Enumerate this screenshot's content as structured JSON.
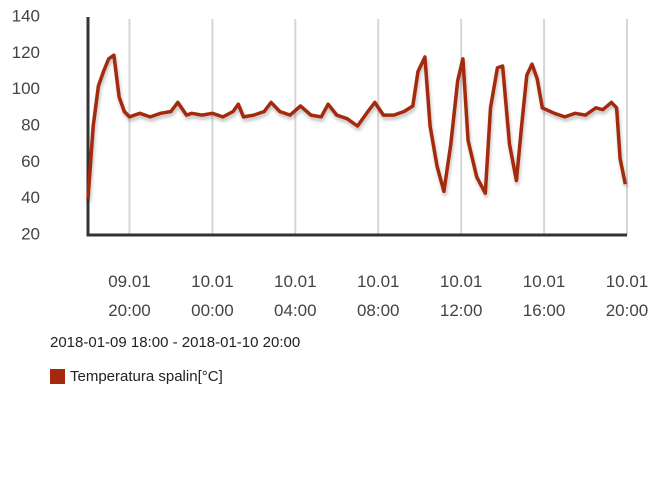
{
  "chart_data": {
    "type": "line",
    "subtitle": "2018-01-09 18:00 - 2018-01-10 20:00",
    "x": [
      "09.01 18:00",
      "09.01 18:15",
      "09.01 18:30",
      "09.01 18:45",
      "09.01 19:00",
      "09.01 19:15",
      "09.01 19:30",
      "09.01 19:45",
      "09.01 20:00",
      "09.01 20:30",
      "09.01 21:00",
      "09.01 21:30",
      "09.01 22:00",
      "09.01 22:20",
      "09.01 22:45",
      "09.01 23:00",
      "09.01 23:30",
      "10.01 00:00",
      "10.01 00:30",
      "10.01 01:00",
      "10.01 01:15",
      "10.01 01:30",
      "10.01 02:00",
      "10.01 02:30",
      "10.01 02:50",
      "10.01 03:15",
      "10.01 03:45",
      "10.01 04:15",
      "10.01 04:45",
      "10.01 05:15",
      "10.01 05:35",
      "10.01 06:00",
      "10.01 06:30",
      "10.01 07:00",
      "10.01 07:30",
      "10.01 07:50",
      "10.01 08:15",
      "10.01 08:45",
      "10.01 09:15",
      "10.01 09:40",
      "10.01 09:55",
      "10.01 10:15",
      "10.01 10:30",
      "10.01 10:50",
      "10.01 11:10",
      "10.01 11:30",
      "10.01 11:50",
      "10.01 12:05",
      "10.01 12:20",
      "10.01 12:45",
      "10.01 13:10",
      "10.01 13:25",
      "10.01 13:45",
      "10.01 14:00",
      "10.01 14:20",
      "10.01 14:40",
      "10.01 14:55",
      "10.01 15:10",
      "10.01 15:25",
      "10.01 15:40",
      "10.01 15:55",
      "10.01 16:30",
      "10.01 17:00",
      "10.01 17:30",
      "10.01 18:00",
      "10.01 18:30",
      "10.01 18:50",
      "10.01 19:15",
      "10.01 19:30",
      "10.01 19:40",
      "10.01 19:55"
    ],
    "series": [
      {
        "name": "Temperatura spalin[°C]",
        "color": "#a3290f",
        "values": [
          40,
          80,
          102,
          110,
          117,
          119,
          96,
          88,
          85,
          87,
          85,
          87,
          88,
          93,
          86,
          87,
          86,
          87,
          85,
          88,
          92,
          85,
          86,
          88,
          93,
          88,
          86,
          91,
          86,
          85,
          92,
          86,
          84,
          80,
          88,
          93,
          86,
          86,
          88,
          91,
          110,
          118,
          80,
          58,
          44,
          70,
          105,
          117,
          72,
          52,
          43,
          90,
          112,
          113,
          70,
          50,
          80,
          108,
          114,
          106,
          90,
          87,
          85,
          87,
          86,
          90,
          89,
          93,
          90,
          62,
          48
        ]
      }
    ],
    "xlim": [
      "09.01 18:00",
      "10.01 20:00"
    ],
    "xticks": [
      "09.01 20:00",
      "10.01 00:00",
      "10.01 04:00",
      "10.01 08:00",
      "10.01 12:00",
      "10.01 16:00",
      "10.01 20:00"
    ],
    "ylim": [
      20,
      140
    ],
    "yticks": [
      20,
      40,
      60,
      80,
      100,
      120,
      140
    ],
    "xgrid": true
  }
}
